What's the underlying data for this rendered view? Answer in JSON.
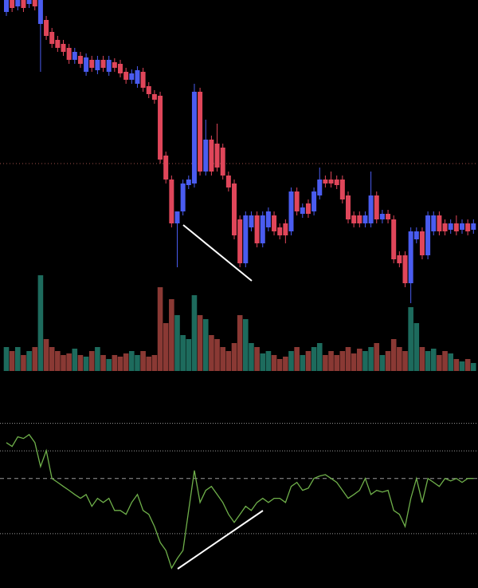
{
  "chart_data": [
    {
      "type": "candlestick",
      "up_color": "#4a5cf0",
      "down_color": "#e0465a",
      "ylim": [
        0,
        380
      ],
      "hline": 175,
      "open": [
        365,
        380,
        372,
        380,
        375,
        380,
        350,
        355,
        340,
        330,
        325,
        320,
        305,
        310,
        290,
        305,
        292,
        305,
        290,
        302,
        300,
        290,
        280,
        275,
        290,
        272,
        262,
        260,
        185,
        155,
        100,
        115,
        148,
        150,
        265,
        165,
        205,
        200,
        195,
        160,
        150,
        105,
        50,
        95,
        110,
        75,
        95,
        110,
        95,
        100,
        90,
        140,
        112,
        125,
        115,
        135,
        155,
        155,
        155,
        155,
        135,
        110,
        110,
        100,
        100,
        135,
        105,
        112,
        105,
        60,
        60,
        25,
        80,
        90,
        60,
        90,
        110,
        100,
        92,
        100,
        92,
        100,
        92
      ],
      "high": [
        380,
        380,
        380,
        380,
        380,
        380,
        380,
        360,
        345,
        335,
        330,
        325,
        320,
        315,
        313,
        310,
        310,
        310,
        310,
        307,
        305,
        295,
        293,
        297,
        295,
        277,
        267,
        265,
        190,
        160,
        115,
        155,
        160,
        275,
        270,
        230,
        210,
        225,
        200,
        165,
        155,
        110,
        115,
        115,
        115,
        115,
        120,
        115,
        100,
        105,
        145,
        145,
        125,
        130,
        145,
        170,
        160,
        165,
        160,
        160,
        140,
        115,
        115,
        115,
        165,
        140,
        117,
        117,
        110,
        65,
        65,
        95,
        95,
        95,
        115,
        115,
        115,
        105,
        105,
        110,
        105,
        105,
        105
      ],
      "low": [
        360,
        365,
        367,
        365,
        370,
        367,
        290,
        330,
        320,
        315,
        310,
        300,
        300,
        295,
        285,
        290,
        287,
        290,
        285,
        290,
        283,
        275,
        275,
        270,
        265,
        257,
        250,
        175,
        150,
        95,
        45,
        110,
        143,
        145,
        160,
        160,
        160,
        165,
        155,
        140,
        80,
        45,
        45,
        90,
        70,
        70,
        90,
        85,
        80,
        75,
        85,
        110,
        107,
        107,
        110,
        130,
        145,
        145,
        143,
        125,
        100,
        95,
        95,
        95,
        95,
        100,
        100,
        100,
        50,
        45,
        20,
        0,
        75,
        55,
        55,
        85,
        85,
        85,
        87,
        85,
        87,
        85,
        87
      ],
      "close": [
        380,
        370,
        380,
        370,
        380,
        372,
        380,
        335,
        325,
        320,
        315,
        305,
        315,
        300,
        308,
        295,
        305,
        295,
        305,
        295,
        288,
        280,
        288,
        292,
        270,
        262,
        255,
        180,
        155,
        100,
        115,
        150,
        155,
        265,
        165,
        205,
        165,
        170,
        160,
        145,
        85,
        50,
        110,
        110,
        75,
        110,
        115,
        90,
        85,
        85,
        140,
        115,
        120,
        112,
        140,
        155,
        150,
        150,
        148,
        130,
        105,
        100,
        100,
        110,
        135,
        105,
        112,
        105,
        55,
        50,
        25,
        90,
        90,
        60,
        110,
        110,
        90,
        90,
        100,
        90,
        100,
        90,
        100
      ]
    },
    {
      "type": "bar",
      "ylim": [
        0,
        120
      ],
      "up_color": "#1d6b5d",
      "down_color": "#8a3934",
      "values": [
        30,
        25,
        30,
        20,
        25,
        30,
        120,
        40,
        30,
        25,
        20,
        22,
        28,
        20,
        18,
        25,
        30,
        20,
        15,
        20,
        18,
        22,
        25,
        20,
        25,
        18,
        20,
        105,
        60,
        90,
        70,
        45,
        40,
        95,
        70,
        65,
        45,
        40,
        30,
        25,
        35,
        70,
        65,
        35,
        30,
        22,
        25,
        20,
        15,
        18,
        25,
        30,
        20,
        25,
        30,
        35,
        20,
        25,
        20,
        25,
        30,
        22,
        28,
        25,
        30,
        35,
        20,
        25,
        40,
        30,
        25,
        80,
        60,
        30,
        25,
        28,
        20,
        25,
        22,
        15,
        12,
        15,
        10
      ]
    },
    {
      "type": "line",
      "color": "#6fb04a",
      "ylim": [
        10,
        80
      ],
      "levels": [
        70,
        60,
        50,
        30
      ],
      "values": [
        63,
        61.6,
        65.1,
        64.5,
        65.9,
        63,
        54.3,
        60.1,
        50,
        48.6,
        47.1,
        45.7,
        44.2,
        42.8,
        44.2,
        39.9,
        42.8,
        41.3,
        42.8,
        38.4,
        38.4,
        37,
        41.3,
        44.2,
        38.4,
        37,
        32.6,
        26.8,
        23.9,
        17.5,
        21,
        23.9,
        38.4,
        52.9,
        41.3,
        45.7,
        47.1,
        44.2,
        41.3,
        37,
        34.1,
        37,
        39.9,
        38.4,
        41.3,
        42.8,
        41.3,
        42.8,
        42.8,
        41.3,
        47.1,
        48.6,
        45.7,
        46.5,
        50,
        50.9,
        51.4,
        50,
        48.6,
        45.7,
        42.8,
        44.2,
        45.7,
        50,
        44.2,
        45.7,
        45.1,
        45.7,
        38.4,
        37,
        32.6,
        42.8,
        50,
        41.3,
        50,
        48.6,
        47.1,
        50,
        49.1,
        50,
        48.6,
        50,
        50
      ]
    }
  ]
}
